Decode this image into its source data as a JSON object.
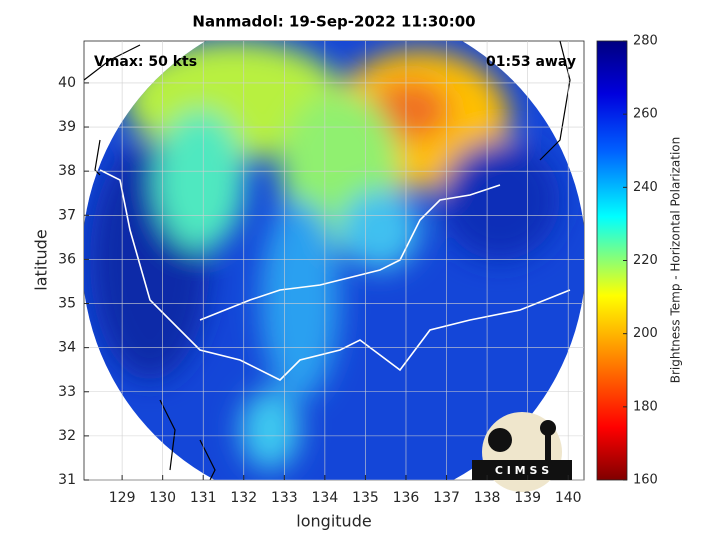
{
  "chart_data": {
    "type": "map",
    "title": "Nanmadol: 19-Sep-2022 11:30:00",
    "annotations": [
      "Vmax: 50 kts",
      "01:53 away"
    ],
    "x_label": "longitude",
    "y_label": "latitude",
    "xlim": [
      128.06,
      140.39
    ],
    "ylim": [
      31,
      40.95
    ],
    "xticks": [
      129,
      130,
      131,
      132,
      133,
      134,
      135,
      136,
      137,
      138,
      139,
      140
    ],
    "yticks": [
      31,
      32,
      33,
      34,
      35,
      36,
      37,
      38,
      39,
      40
    ],
    "grid": true,
    "colorbar": {
      "label": "Brightness Temp - Horizontal Polarization",
      "lim": [
        160,
        280
      ],
      "ticks": [
        160,
        180,
        200,
        220,
        240,
        260,
        280
      ]
    },
    "logo": "C I M S S"
  }
}
